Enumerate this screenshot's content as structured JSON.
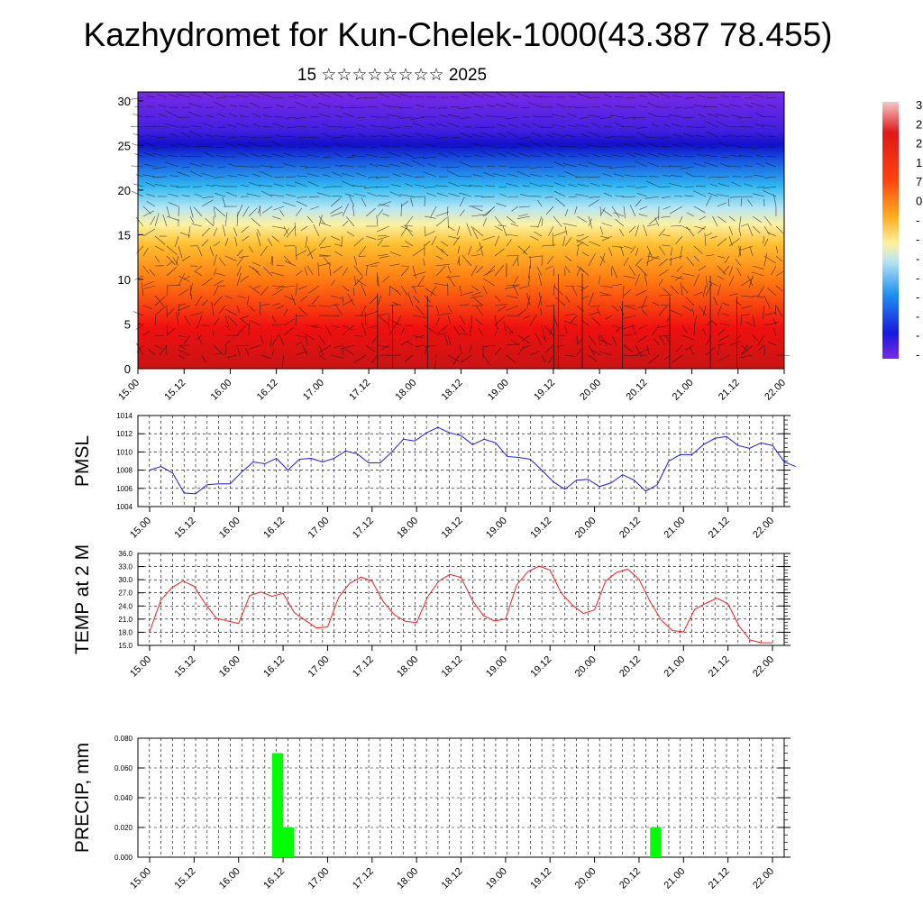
{
  "title": "Kazhydromet for Kun-Chelek-1000(43.387 78.455)",
  "subtitle": {
    "day": "15",
    "month": "☆☆☆☆☆☆☆☆",
    "year": "2025"
  },
  "time_labels": [
    "15.00",
    "15.12",
    "16.00",
    "16.12",
    "17.00",
    "17.12",
    "18.00",
    "18.12",
    "19.00",
    "19.12",
    "20.00",
    "20.12",
    "21.00",
    "21.12",
    "22.00"
  ],
  "colors": {
    "pmsl_line": "#1a1aff",
    "temp_line": "#ff1a1a",
    "precip_bar": "#00ff00",
    "colorbar_top": "#f4c8c8",
    "colorbar_bottom": "#7a2ae6"
  },
  "chart_data": [
    {
      "type": "heatmap",
      "name": "vertical temperature and wind cross-section",
      "yticks": [
        "0",
        "5",
        "10",
        "15",
        "20",
        "25",
        "30"
      ],
      "ylim": [
        0,
        31
      ],
      "xlim": [
        0,
        168
      ],
      "colorbar": {
        "visible_labels": [
          "3",
          "2",
          "2",
          "1",
          "7",
          "0",
          "-",
          "-",
          "-",
          "-",
          "-",
          "-",
          "-",
          "-"
        ],
        "range_description": "warm (red) at bottom to cold (purple) at top"
      },
      "temperature_band_levels": [
        {
          "y": 0,
          "band": "red"
        },
        {
          "y": 10,
          "band": "orange"
        },
        {
          "y": 16,
          "band": "yellow"
        },
        {
          "y": 18,
          "band": "light-blue"
        },
        {
          "y": 21,
          "band": "blue"
        },
        {
          "y": 25,
          "band": "deep-blue"
        },
        {
          "y": 27,
          "band": "purple"
        }
      ],
      "wind_vectors": "shown"
    },
    {
      "type": "line",
      "ylabel": "PMSL",
      "yticks": [
        "1004",
        "1006",
        "1008",
        "1010",
        "1012",
        "1014"
      ],
      "ylim": [
        1004,
        1014
      ],
      "xlim": [
        0,
        168
      ],
      "grid": true,
      "x": [
        0,
        3,
        6,
        9,
        12,
        15,
        18,
        21,
        24,
        27,
        30,
        33,
        36,
        39,
        42,
        45,
        48,
        51,
        54,
        57,
        60,
        63,
        66,
        69,
        72,
        75,
        78,
        81,
        84,
        87,
        90,
        93,
        96,
        99,
        102,
        105,
        108,
        111,
        114,
        117,
        120,
        123,
        126,
        129,
        132,
        135,
        138,
        141,
        144,
        147,
        150,
        153,
        156,
        159,
        162
      ],
      "values": [
        1008.0,
        1008.4,
        1007.7,
        1005.5,
        1005.4,
        1006.4,
        1006.5,
        1006.5,
        1007.8,
        1008.9,
        1008.7,
        1009.3,
        1008.0,
        1009.2,
        1009.3,
        1008.9,
        1009.3,
        1010.1,
        1009.8,
        1008.8,
        1008.8,
        1010.0,
        1011.4,
        1011.2,
        1012.1,
        1012.7,
        1012.1,
        1011.8,
        1010.8,
        1011.4,
        1011.0,
        1009.5,
        1009.4,
        1009.2,
        1008.0,
        1006.7,
        1005.9,
        1006.9,
        1007.0,
        1006.2,
        1006.6,
        1007.5,
        1006.9,
        1005.7,
        1006.4,
        1009.0,
        1009.7,
        1009.7,
        1010.8,
        1011.5,
        1011.7,
        1010.7,
        1010.4,
        1011.0,
        1010.7
      ],
      "tail_x": [
        165
      ],
      "tail_values": [
        1008.9
      ],
      "end_x": 168,
      "end_value": 1008.4
    },
    {
      "type": "line",
      "ylabel": "TEMP at 2 M",
      "yticks": [
        "15.0",
        "18.0",
        "21.0",
        "24.0",
        "27.0",
        "30.0",
        "33.0",
        "36.0"
      ],
      "ylim": [
        15,
        36
      ],
      "xlim": [
        0,
        168
      ],
      "grid": true,
      "x": [
        0,
        3,
        6,
        9,
        12,
        15,
        18,
        21,
        24,
        27,
        30,
        33,
        36,
        39,
        42,
        45,
        48,
        51,
        54,
        57,
        60,
        63,
        66,
        69,
        72,
        75,
        78,
        81,
        84,
        87,
        90,
        93,
        96,
        99,
        102,
        105,
        108,
        111,
        114,
        117,
        120,
        123,
        126,
        129,
        132,
        135,
        138,
        141,
        144,
        147,
        150,
        153,
        156,
        159,
        162,
        165,
        168
      ],
      "values": [
        18.1,
        25.3,
        28.2,
        29.7,
        28.5,
        24.5,
        21.2,
        20.6,
        20.0,
        26.4,
        27.2,
        26.2,
        26.9,
        22.5,
        20.7,
        19.0,
        19.2,
        26.0,
        29.2,
        30.6,
        29.7,
        25.0,
        22.0,
        20.5,
        20.2,
        26.1,
        29.7,
        31.2,
        30.5,
        25.4,
        21.8,
        20.6,
        21.0,
        28.8,
        31.8,
        33.1,
        32.2,
        27.0,
        24.2,
        22.3,
        23.1,
        29.7,
        31.7,
        32.4,
        30.1,
        25.0,
        20.8,
        18.4,
        18.1,
        23.2,
        24.6,
        25.8,
        24.5,
        19.4,
        16.2,
        15.6,
        15.6
      ]
    },
    {
      "type": "bar",
      "ylabel": "PRECIP, mm",
      "yticks": [
        "0.000",
        "0.020",
        "0.040",
        "0.060",
        "0.080"
      ],
      "ylim": [
        0,
        0.08
      ],
      "xlim": [
        0,
        168
      ],
      "grid": true,
      "bars": [
        {
          "x0": 33,
          "x1": 36,
          "value": 0.07
        },
        {
          "x0": 36,
          "x1": 39,
          "value": 0.02
        },
        {
          "x0": 135,
          "x1": 138,
          "value": 0.02
        }
      ]
    }
  ]
}
